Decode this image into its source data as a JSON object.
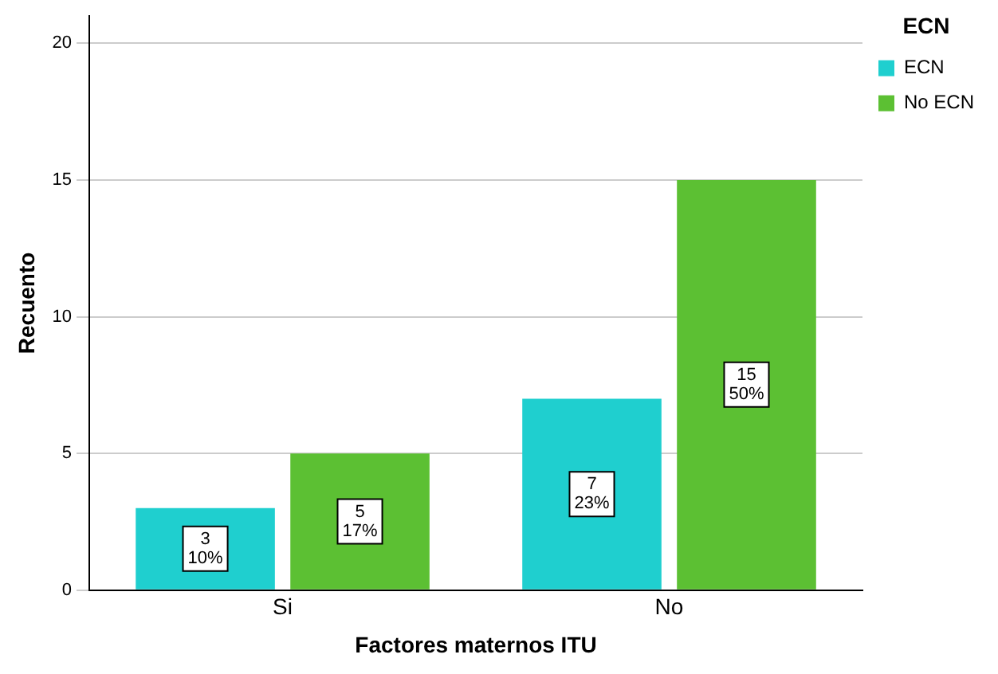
{
  "chart_data": {
    "type": "bar",
    "xlabel": "Factores maternos ITU",
    "ylabel": "Recuento",
    "legend_title": "ECN",
    "categories": [
      "Si",
      "No"
    ],
    "series": [
      {
        "name": "ECN",
        "color": "#1fcfcf",
        "values": [
          3,
          7
        ],
        "value_labels": [
          "3\n10%",
          "7\n23%"
        ]
      },
      {
        "name": "No ECN",
        "color": "#5cc033",
        "values": [
          5,
          15
        ],
        "value_labels": [
          "5\n17%",
          "15\n50%"
        ]
      }
    ],
    "ylim": [
      0,
      21
    ],
    "yticks": [
      0,
      5,
      10,
      15,
      20
    ],
    "grid": "y",
    "legend": "top right"
  }
}
